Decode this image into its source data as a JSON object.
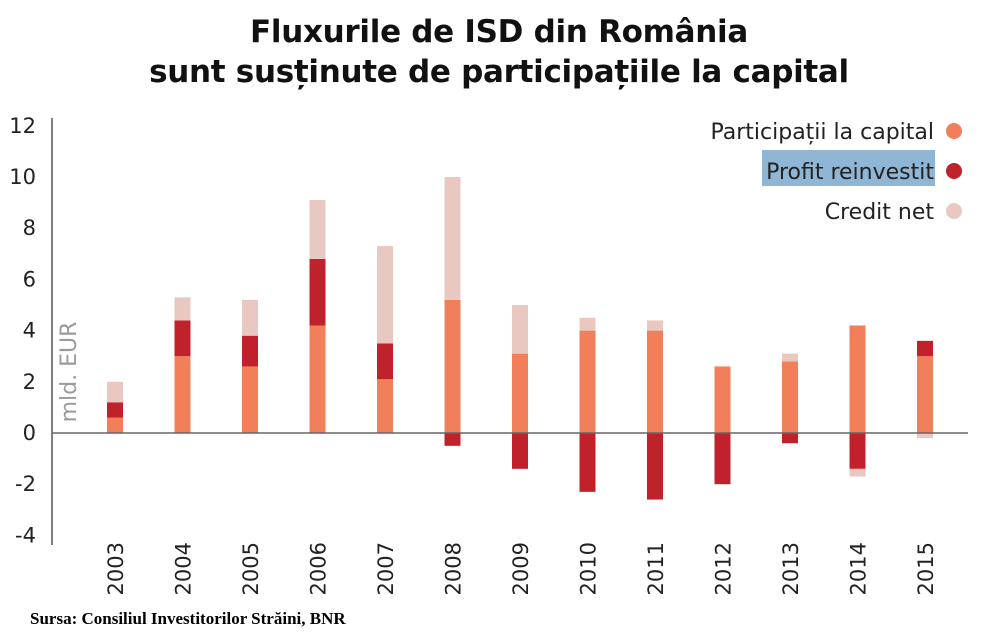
{
  "title_line1": "Fluxurile de ISD din România",
  "title_line2": "sunt susținute de  participațiile la capital",
  "source": "Sursa: Consiliul Investitorilor Străini, BNR",
  "chart_data": {
    "type": "bar",
    "stacked": true,
    "title": "Fluxurile de ISD din România sunt susținute de  participațiile la capital",
    "ylabel": "mld. EUR",
    "xlabel": "",
    "ylim": [
      -4,
      12
    ],
    "yticks": [
      12,
      10,
      8,
      6,
      4,
      2,
      0,
      -2,
      -4
    ],
    "grid": false,
    "legend_position": "top-right",
    "categories": [
      "2003",
      "2004",
      "2005",
      "2006",
      "2007",
      "2008",
      "2009",
      "2010",
      "2011",
      "2012",
      "2013",
      "2014",
      "2015"
    ],
    "series": [
      {
        "name": "Participații la capital",
        "color": "#f07f5a",
        "values": [
          0.6,
          3.0,
          2.6,
          4.2,
          2.1,
          5.2,
          3.1,
          4.0,
          4.0,
          2.6,
          2.8,
          4.2,
          3.0
        ]
      },
      {
        "name": "Profit reinvestit",
        "color": "#c0222b",
        "values": [
          0.6,
          1.4,
          1.2,
          2.6,
          1.4,
          -0.5,
          -1.4,
          -2.3,
          -2.6,
          -2.0,
          -0.4,
          -1.4,
          0.6
        ]
      },
      {
        "name": "Credit net",
        "color": "#e8c8c0",
        "values": [
          0.8,
          0.9,
          1.4,
          2.3,
          3.8,
          4.8,
          1.9,
          0.5,
          0.4,
          0.0,
          0.3,
          -0.3,
          -0.2
        ]
      }
    ],
    "legend_highlight": "Profit reinvestit",
    "legend_highlight_color": "#8fb6d4"
  }
}
